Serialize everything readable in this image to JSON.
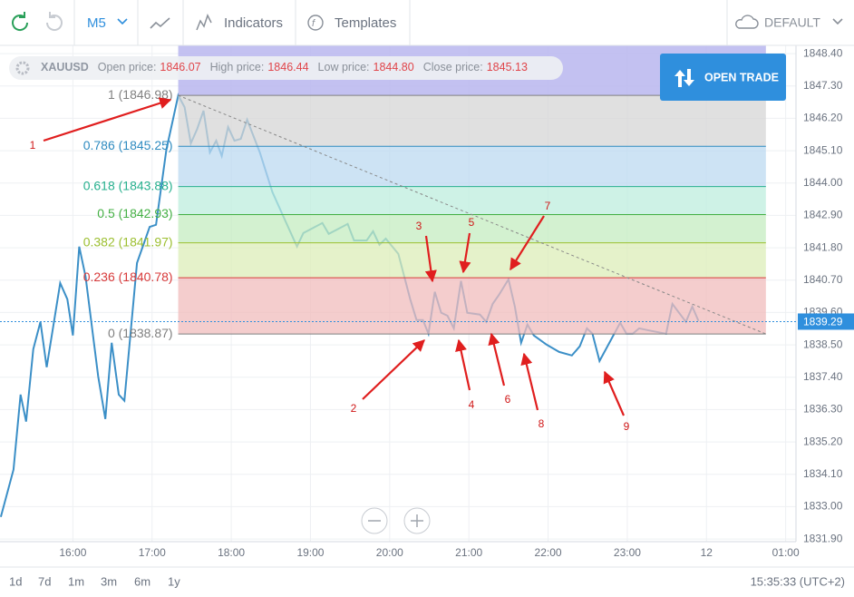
{
  "toolbar": {
    "timeframe": "M5",
    "indicators": "Indicators",
    "templates": "Templates",
    "layout": "DEFAULT"
  },
  "ohlc": {
    "symbol": "XAUUSD",
    "open_label": "Open price:",
    "open": "1846.07",
    "high_label": "High price:",
    "high": "1846.44",
    "low_label": "Low price:",
    "low": "1844.80",
    "close_label": "Close price:",
    "close": "1845.13"
  },
  "open_trade": "OPEN TRADE",
  "chart_data": {
    "type": "line",
    "color": "#3b8fc7",
    "grid": true,
    "x": [
      15.09,
      15.25,
      15.34,
      15.41,
      15.5,
      15.59,
      15.67,
      15.84,
      15.93,
      16.0,
      16.08,
      16.16,
      16.32,
      16.41,
      16.49,
      16.58,
      16.65,
      16.81,
      16.97,
      17.05,
      17.18,
      17.33,
      17.41,
      17.49,
      17.57,
      17.65,
      17.73,
      17.81,
      17.88,
      17.96,
      18.04,
      18.12,
      18.2,
      18.36,
      18.52,
      18.68,
      18.83,
      18.91,
      19.15,
      19.23,
      19.47,
      19.55,
      19.71,
      19.79,
      19.87,
      19.95,
      20.11,
      20.26,
      20.34,
      20.42,
      20.49,
      20.57,
      20.65,
      20.73,
      20.81,
      20.9,
      20.98,
      21.14,
      21.22,
      21.3,
      21.38,
      21.5,
      21.58,
      21.66,
      21.74,
      21.82,
      21.98,
      22.14,
      22.3,
      22.4,
      22.49,
      22.56,
      22.65,
      22.81,
      22.91,
      22.99,
      23.07,
      23.15,
      23.31,
      23.49,
      23.57,
      23.74,
      23.82,
      23.9
    ],
    "values": [
      1832.65,
      1834.26,
      1836.81,
      1835.89,
      1838.35,
      1839.28,
      1837.74,
      1840.6,
      1840.05,
      1838.82,
      1841.84,
      1840.82,
      1837.43,
      1835.98,
      1838.57,
      1836.81,
      1836.6,
      1841.28,
      1842.51,
      1842.58,
      1845.13,
      1846.98,
      1846.58,
      1845.35,
      1845.84,
      1846.46,
      1845.04,
      1845.44,
      1844.92,
      1845.9,
      1845.44,
      1845.5,
      1846.15,
      1845.04,
      1843.69,
      1842.73,
      1841.84,
      1842.3,
      1842.64,
      1842.27,
      1842.61,
      1842.05,
      1842.05,
      1842.36,
      1841.9,
      1842.11,
      1841.59,
      1840.05,
      1839.34,
      1839.34,
      1838.88,
      1840.3,
      1839.59,
      1839.49,
      1839.06,
      1840.67,
      1839.59,
      1839.53,
      1839.28,
      1839.89,
      1840.2,
      1840.73,
      1839.8,
      1838.57,
      1839.19,
      1838.82,
      1838.51,
      1838.26,
      1838.14,
      1838.45,
      1839.06,
      1838.88,
      1837.95,
      1838.75,
      1839.25,
      1838.88,
      1838.88,
      1839.06,
      1838.97,
      1838.88,
      1839.89,
      1839.28,
      1839.8,
      1839.31
    ],
    "xlim": [
      15.08,
      25.13
    ],
    "xticks": [
      {
        "value": 16,
        "label": "16:00"
      },
      {
        "value": 17,
        "label": "17:00"
      },
      {
        "value": 18,
        "label": "18:00"
      },
      {
        "value": 19,
        "label": "19:00"
      },
      {
        "value": 20,
        "label": "20:00"
      },
      {
        "value": 21,
        "label": "21:00"
      },
      {
        "value": 22,
        "label": "22:00"
      },
      {
        "value": 23,
        "label": "23:00"
      },
      {
        "value": 24,
        "label": "12"
      },
      {
        "value": 25,
        "label": "01:00"
      }
    ],
    "ylim": [
      1831.81,
      1848.68
    ],
    "yticks": [
      {
        "value": 1848.4,
        "label": "1848.40"
      },
      {
        "value": 1847.3,
        "label": "1847.30"
      },
      {
        "value": 1846.2,
        "label": "1846.20"
      },
      {
        "value": 1845.1,
        "label": "1845.10"
      },
      {
        "value": 1844,
        "label": "1844.00"
      },
      {
        "value": 1842.9,
        "label": "1842.90"
      },
      {
        "value": 1841.8,
        "label": "1841.80"
      },
      {
        "value": 1840.7,
        "label": "1840.70"
      },
      {
        "value": 1839.6,
        "label": "1839.60"
      },
      {
        "value": 1838.5,
        "label": "1838.50"
      },
      {
        "value": 1837.4,
        "label": "1837.40"
      },
      {
        "value": 1836.3,
        "label": "1836.30"
      },
      {
        "value": 1835.2,
        "label": "1835.20"
      },
      {
        "value": 1834.1,
        "label": "1834.10"
      },
      {
        "value": 1833,
        "label": "1833.00"
      },
      {
        "value": 1831.9,
        "label": "1831.90"
      }
    ],
    "current_price": 1839.29,
    "fib": {
      "x": [
        17.33,
        24.75
      ],
      "top_color": "#b9b6ee",
      "levels": [
        {
          "value": 1846.98,
          "label": "1 (1846.98)",
          "color": "#808080",
          "fill": "#d6d6d6"
        },
        {
          "value": 1845.25,
          "label": "0.786 (1845.25)",
          "color": "#2e8bc0",
          "fill": "#bcdaf0"
        },
        {
          "value": 1843.88,
          "label": "0.618 (1843.88)",
          "color": "#27b08e",
          "fill": "#bdeedd"
        },
        {
          "value": 1842.93,
          "label": "0.5 (1842.93)",
          "color": "#44b044",
          "fill": "#c4ecc0"
        },
        {
          "value": 1841.97,
          "label": "0.382 (1841.97)",
          "color": "#9cbf30",
          "fill": "#dcedb8"
        },
        {
          "value": 1840.78,
          "label": "0.236 (1840.78)",
          "color": "#d83a3a",
          "fill": "#f0bcbc"
        },
        {
          "value": 1838.87,
          "label": "0 (1838.87)",
          "color": "#808080",
          "fill": null
        }
      ]
    },
    "annotations": [
      "1",
      "2",
      "3",
      "4",
      "5",
      "6",
      "7",
      "8",
      "9"
    ]
  },
  "ranges": [
    "1d",
    "7d",
    "1m",
    "3m",
    "6m",
    "1y"
  ],
  "clock": "15:35:33 (UTC+2)"
}
